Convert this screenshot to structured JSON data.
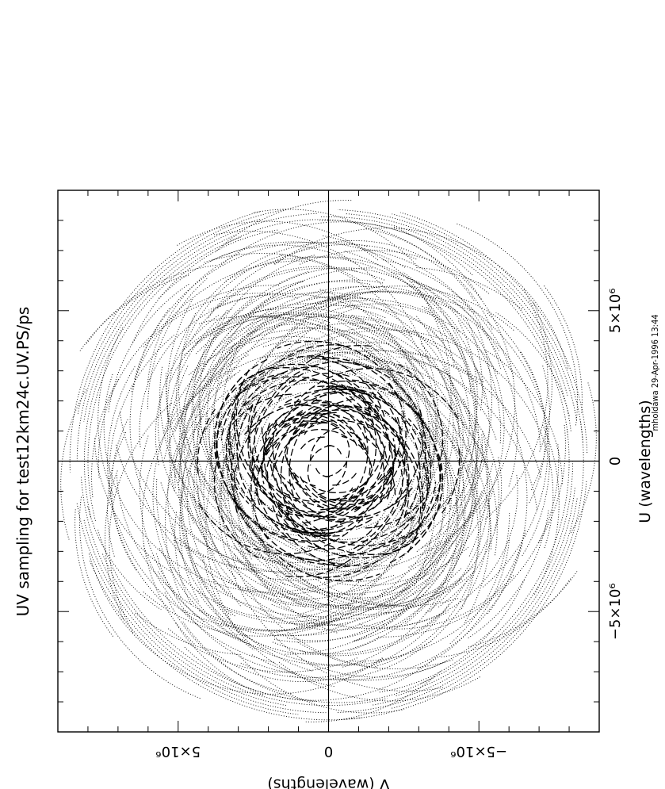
{
  "chart_data": {
    "type": "scatter",
    "title": "UV sampling for test12km24c.UV.PS/ps",
    "xlabel": "U (wavelengths)",
    "ylabel": "V (wavelengths)",
    "xlim": [
      -9000000,
      9000000
    ],
    "ylim": [
      -9000000,
      9000000
    ],
    "major_ticks": [
      -5000000,
      0,
      5000000
    ],
    "minor_tick_step": 1000000,
    "x_tick_labels": [
      "−5×10⁶",
      "0",
      "5×10⁶"
    ],
    "y_tick_labels": [
      "5×10⁶",
      "0",
      "−5×10⁶"
    ],
    "grid": false,
    "zero_lines": true,
    "orientation": "rotated-90-ccw",
    "stamp": "mholdawa 29-Apr-1996 13:44",
    "coverage": {
      "pattern": "concentric arc tracks",
      "inner_dashed_radius_max": 4500000,
      "outer_dotted_radius_max": 8600000,
      "series": [
        {
          "style": "dashed",
          "radius_range": [
            300000,
            4500000
          ]
        },
        {
          "style": "dotted",
          "radius_range": [
            4500000,
            8600000
          ]
        }
      ]
    }
  }
}
